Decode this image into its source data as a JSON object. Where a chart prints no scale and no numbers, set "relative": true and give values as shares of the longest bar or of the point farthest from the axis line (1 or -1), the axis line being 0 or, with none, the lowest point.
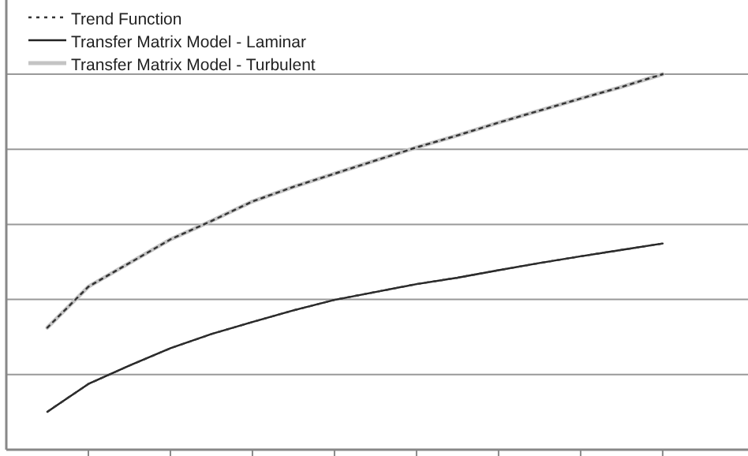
{
  "chart_data": {
    "type": "line",
    "relative": true,
    "grid": "y",
    "legend": "top left",
    "marker": "none",
    "categories": [
      null,
      null,
      null,
      null,
      null,
      null,
      null,
      null,
      null,
      null,
      null,
      null,
      null,
      null,
      null,
      null
    ],
    "series": [
      {
        "name": "Trend Function",
        "color": "#333333",
        "line_style": "dotted",
        "values": [
          0.325,
          0.434,
          0.497,
          0.56,
          0.609,
          0.661,
          0.7,
          0.735,
          0.77,
          0.805,
          0.837,
          0.871,
          0.903,
          0.935,
          0.966,
          1.0
        ]
      },
      {
        "name": "Transfer Matrix Model - Laminar",
        "color": "#222222",
        "line_style": "solid",
        "values": [
          0.101,
          0.175,
          0.224,
          0.27,
          0.308,
          0.34,
          0.371,
          0.399,
          0.42,
          0.441,
          0.458,
          0.478,
          0.497,
          0.515,
          0.532,
          0.549
        ]
      },
      {
        "name": "Transfer Matrix Model - Turbulent",
        "color": "#c4c4c4",
        "line_style": "solid",
        "values": [
          0.325,
          0.434,
          0.497,
          0.56,
          0.609,
          0.661,
          0.7,
          0.735,
          0.77,
          0.805,
          0.837,
          0.871,
          0.903,
          0.935,
          0.966,
          1.0
        ]
      },
      {
        "color": "#333333",
        "line_style": "dotted",
        "values": [
          0.101,
          0.175,
          0.224,
          0.27,
          0.308,
          0.34,
          0.371,
          0.399,
          0.42,
          0.441,
          0.458,
          0.478,
          0.497,
          0.515,
          0.532,
          0.549
        ]
      }
    ]
  }
}
